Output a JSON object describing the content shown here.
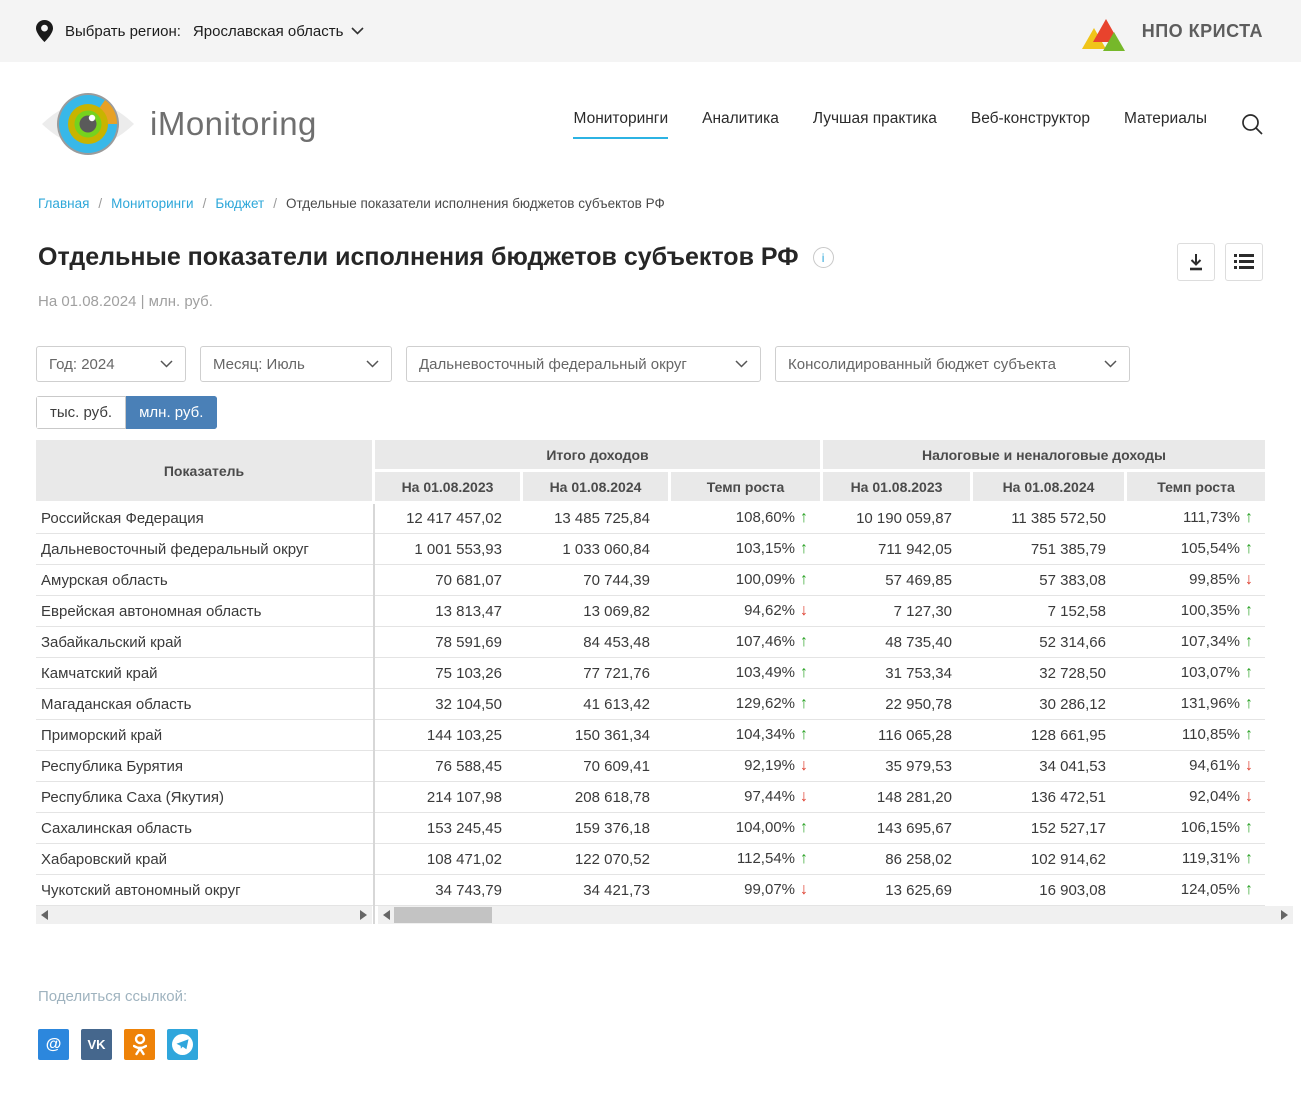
{
  "colors": {
    "accent_blue": "#2cb3e3",
    "link_blue": "#2da7d9",
    "toggle_active": "#4a80b7",
    "trend_green": "#2fa42a",
    "trend_red": "#dd3a2a",
    "social_mail": "#2c87dd",
    "social_vk": "#45678d",
    "social_ok": "#ee8208",
    "social_tg": "#2fa6dc"
  },
  "topbar": {
    "region_label": "Выбрать регион:",
    "region_value": "Ярославская область",
    "brand": "НПО КРИСТА"
  },
  "header": {
    "logo_text": "iMonitoring",
    "nav": [
      {
        "label": "Мониторинги",
        "active": true
      },
      {
        "label": "Аналитика",
        "active": false
      },
      {
        "label": "Лучшая практика",
        "active": false
      },
      {
        "label": "Веб-конструктор",
        "active": false
      },
      {
        "label": "Материалы",
        "active": false
      }
    ]
  },
  "breadcrumbs": {
    "items": [
      {
        "label": "Главная",
        "link": true
      },
      {
        "label": "Мониторинги",
        "link": true
      },
      {
        "label": "Бюджет",
        "link": true
      },
      {
        "label": "Отдельные показатели исполнения бюджетов субъектов РФ",
        "link": false
      }
    ]
  },
  "page": {
    "title": "Отдельные показатели исполнения бюджетов субъектов РФ",
    "info_icon": "i",
    "subtitle": "На 01.08.2024 | млн. руб."
  },
  "filters": {
    "year": "Год: 2024",
    "month": "Месяц: Июль",
    "district": "Дальневосточный федеральный округ",
    "budget": "Консолидированный бюджет субъекта"
  },
  "unit_toggle": {
    "thousands": "тыс. руб.",
    "millions": "млн. руб.",
    "active": "млн. руб."
  },
  "table": {
    "indicator_header": "Показатель",
    "group1": "Итого доходов",
    "group2": "Налоговые и неналоговые доходы",
    "sub1": "На 01.08.2023",
    "sub2": "На 01.08.2024",
    "sub3": "Темп роста",
    "sub4": "На 01.08.2023",
    "sub5": "На 01.08.2024",
    "sub6": "Темп роста",
    "rows": [
      {
        "name": "Российская Федерация",
        "total_2023": "12 417 457,02",
        "total_2024": "13 485 725,84",
        "total_growth": "108,60%",
        "total_trend": "up",
        "tax_2023": "10 190 059,87",
        "tax_2024": "11 385 572,50",
        "tax_growth": "111,73%",
        "tax_trend": "up"
      },
      {
        "name": "Дальневосточный федеральный округ",
        "total_2023": "1 001 553,93",
        "total_2024": "1 033 060,84",
        "total_growth": "103,15%",
        "total_trend": "up",
        "tax_2023": "711 942,05",
        "tax_2024": "751 385,79",
        "tax_growth": "105,54%",
        "tax_trend": "up"
      },
      {
        "name": "Амурская область",
        "total_2023": "70 681,07",
        "total_2024": "70 744,39",
        "total_growth": "100,09%",
        "total_trend": "up",
        "tax_2023": "57 469,85",
        "tax_2024": "57 383,08",
        "tax_growth": "99,85%",
        "tax_trend": "down"
      },
      {
        "name": "Еврейская автономная область",
        "total_2023": "13 813,47",
        "total_2024": "13 069,82",
        "total_growth": "94,62%",
        "total_trend": "down",
        "tax_2023": "7 127,30",
        "tax_2024": "7 152,58",
        "tax_growth": "100,35%",
        "tax_trend": "up"
      },
      {
        "name": "Забайкальский край",
        "total_2023": "78 591,69",
        "total_2024": "84 453,48",
        "total_growth": "107,46%",
        "total_trend": "up",
        "tax_2023": "48 735,40",
        "tax_2024": "52 314,66",
        "tax_growth": "107,34%",
        "tax_trend": "up"
      },
      {
        "name": "Камчатский край",
        "total_2023": "75 103,26",
        "total_2024": "77 721,76",
        "total_growth": "103,49%",
        "total_trend": "up",
        "tax_2023": "31 753,34",
        "tax_2024": "32 728,50",
        "tax_growth": "103,07%",
        "tax_trend": "up"
      },
      {
        "name": "Магаданская область",
        "total_2023": "32 104,50",
        "total_2024": "41 613,42",
        "total_growth": "129,62%",
        "total_trend": "up",
        "tax_2023": "22 950,78",
        "tax_2024": "30 286,12",
        "tax_growth": "131,96%",
        "tax_trend": "up"
      },
      {
        "name": "Приморский край",
        "total_2023": "144 103,25",
        "total_2024": "150 361,34",
        "total_growth": "104,34%",
        "total_trend": "up",
        "tax_2023": "116 065,28",
        "tax_2024": "128 661,95",
        "tax_growth": "110,85%",
        "tax_trend": "up"
      },
      {
        "name": "Республика Бурятия",
        "total_2023": "76 588,45",
        "total_2024": "70 609,41",
        "total_growth": "92,19%",
        "total_trend": "down",
        "tax_2023": "35 979,53",
        "tax_2024": "34 041,53",
        "tax_growth": "94,61%",
        "tax_trend": "down"
      },
      {
        "name": "Республика Саха (Якутия)",
        "total_2023": "214 107,98",
        "total_2024": "208 618,78",
        "total_growth": "97,44%",
        "total_trend": "down",
        "tax_2023": "148 281,20",
        "tax_2024": "136 472,51",
        "tax_growth": "92,04%",
        "tax_trend": "down"
      },
      {
        "name": "Сахалинская область",
        "total_2023": "153 245,45",
        "total_2024": "159 376,18",
        "total_growth": "104,00%",
        "total_trend": "up",
        "tax_2023": "143 695,67",
        "tax_2024": "152 527,17",
        "tax_growth": "106,15%",
        "tax_trend": "up"
      },
      {
        "name": "Хабаровский край",
        "total_2023": "108 471,02",
        "total_2024": "122 070,52",
        "total_growth": "112,54%",
        "total_trend": "up",
        "tax_2023": "86 258,02",
        "tax_2024": "102 914,62",
        "tax_growth": "119,31%",
        "tax_trend": "up"
      },
      {
        "name": "Чукотский автономный округ",
        "total_2023": "34 743,79",
        "total_2024": "34 421,73",
        "total_growth": "99,07%",
        "total_trend": "down",
        "tax_2023": "13 625,69",
        "tax_2024": "16 903,08",
        "tax_growth": "124,05%",
        "tax_trend": "up"
      }
    ]
  },
  "share": {
    "label": "Поделиться ссылкой:",
    "buttons": [
      {
        "name": "mailru",
        "glyph": "@"
      },
      {
        "name": "vk",
        "glyph": "VK"
      },
      {
        "name": "odnoklassniki",
        "glyph": "ok"
      },
      {
        "name": "telegram",
        "glyph": "tg"
      }
    ]
  }
}
